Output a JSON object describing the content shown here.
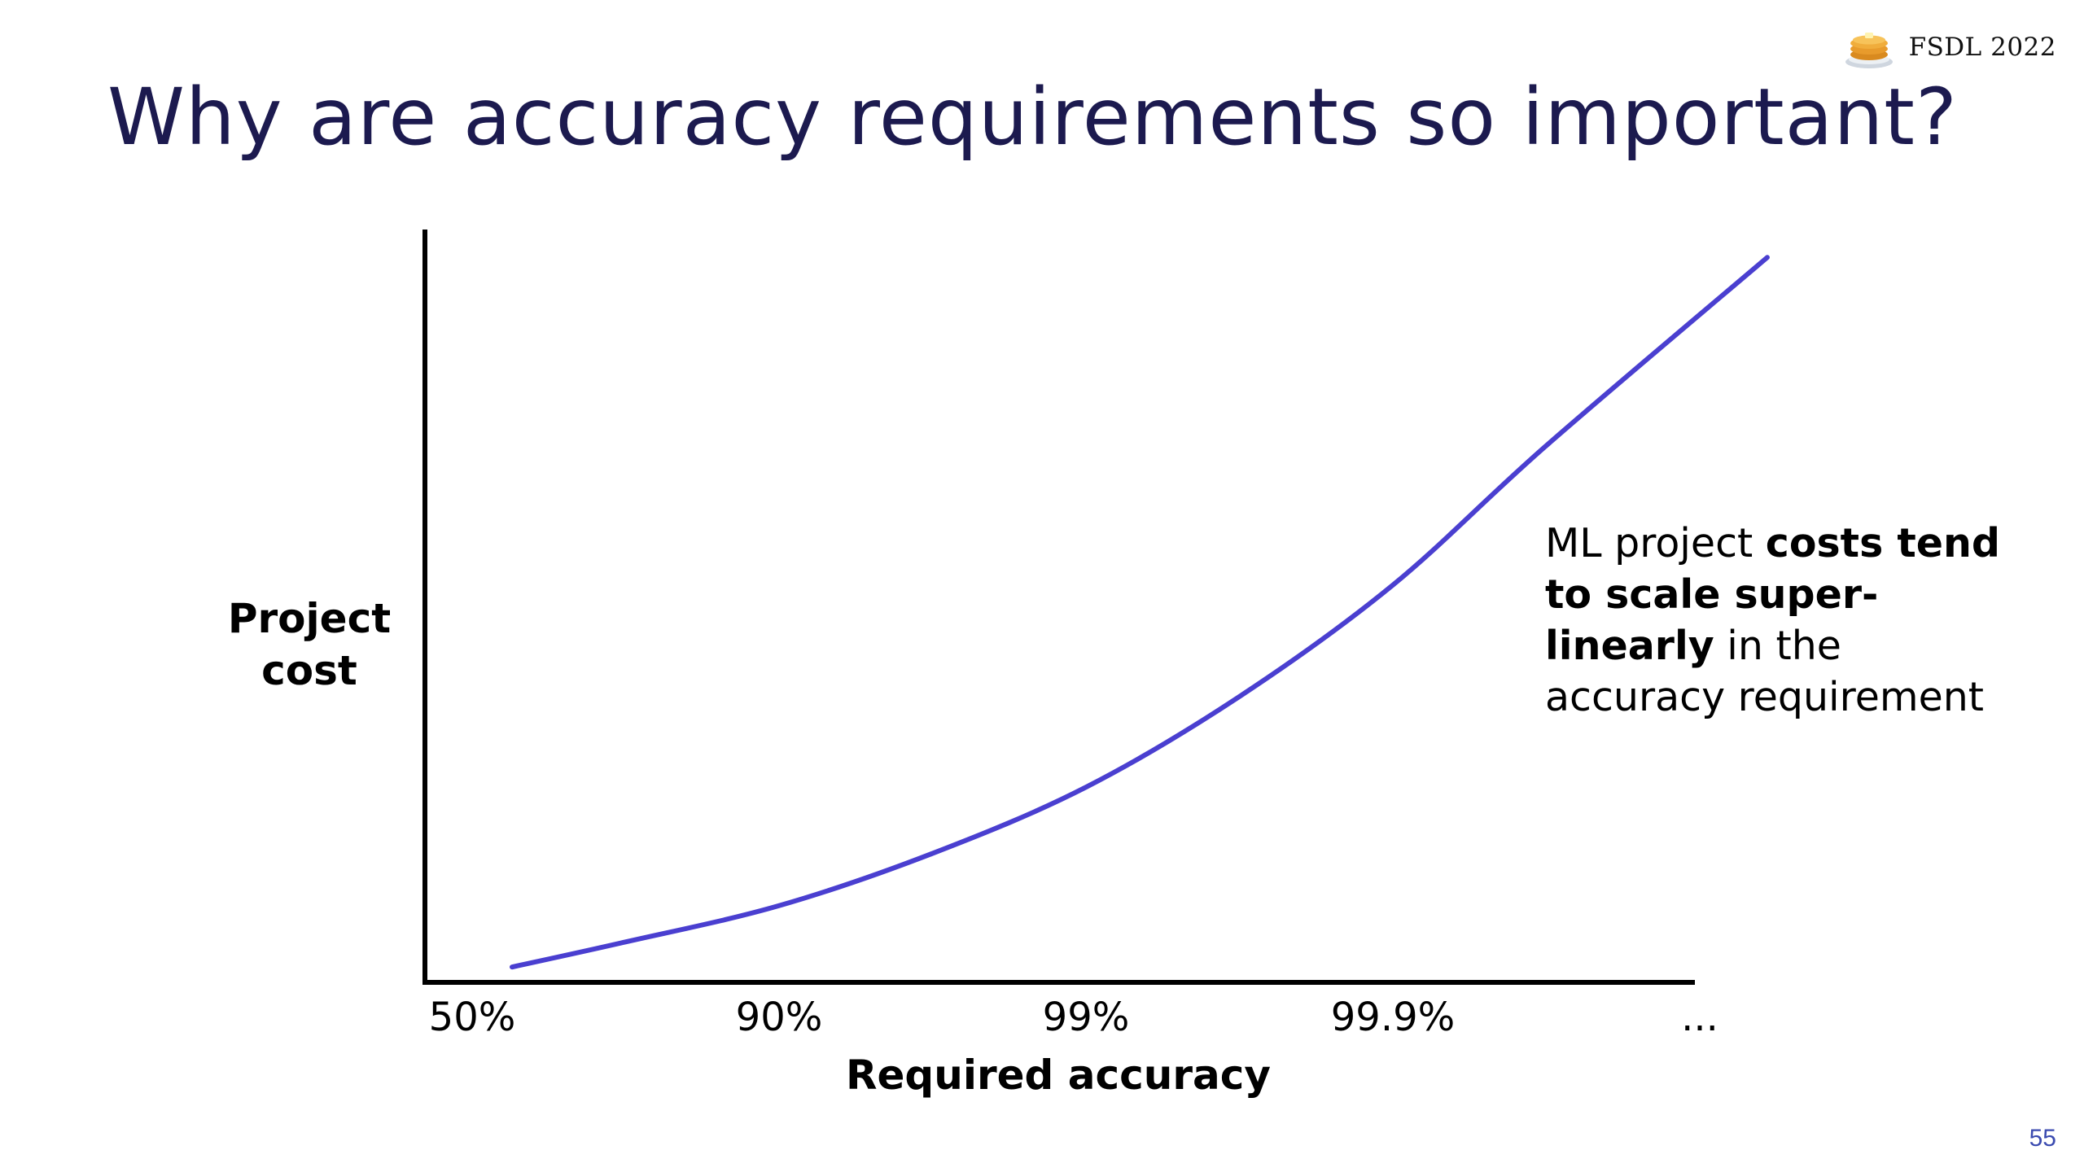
{
  "slide": {
    "title": "Why are accuracy requirements so important?",
    "brand_label": "FSDL 2022",
    "brand_icon": "pancake-stack-icon",
    "page_number": "55"
  },
  "callout": {
    "part1": "ML project ",
    "bold1": "costs tend to scale super-linearly",
    "part2": " in the accuracy requirement"
  },
  "chart_data": {
    "type": "line",
    "xlabel": "Required accuracy",
    "ylabel_lines": [
      "Project",
      "cost"
    ],
    "categories": [
      "50%",
      "90%",
      "99%",
      "99.9%",
      "..."
    ],
    "series": [
      {
        "x": [
          0.13,
          0.5,
          1,
          1.5,
          2,
          2.5,
          3,
          3.5,
          4.22
        ],
        "values": [
          2.2,
          5.8,
          11,
          18.5,
          28,
          41,
          57,
          77,
          104
        ]
      }
    ],
    "ylim": [
      0,
      108
    ],
    "grid": false,
    "colors": {
      "line": "#4a3fd0",
      "axis": "#000000",
      "title": "#1c1a4f"
    }
  }
}
